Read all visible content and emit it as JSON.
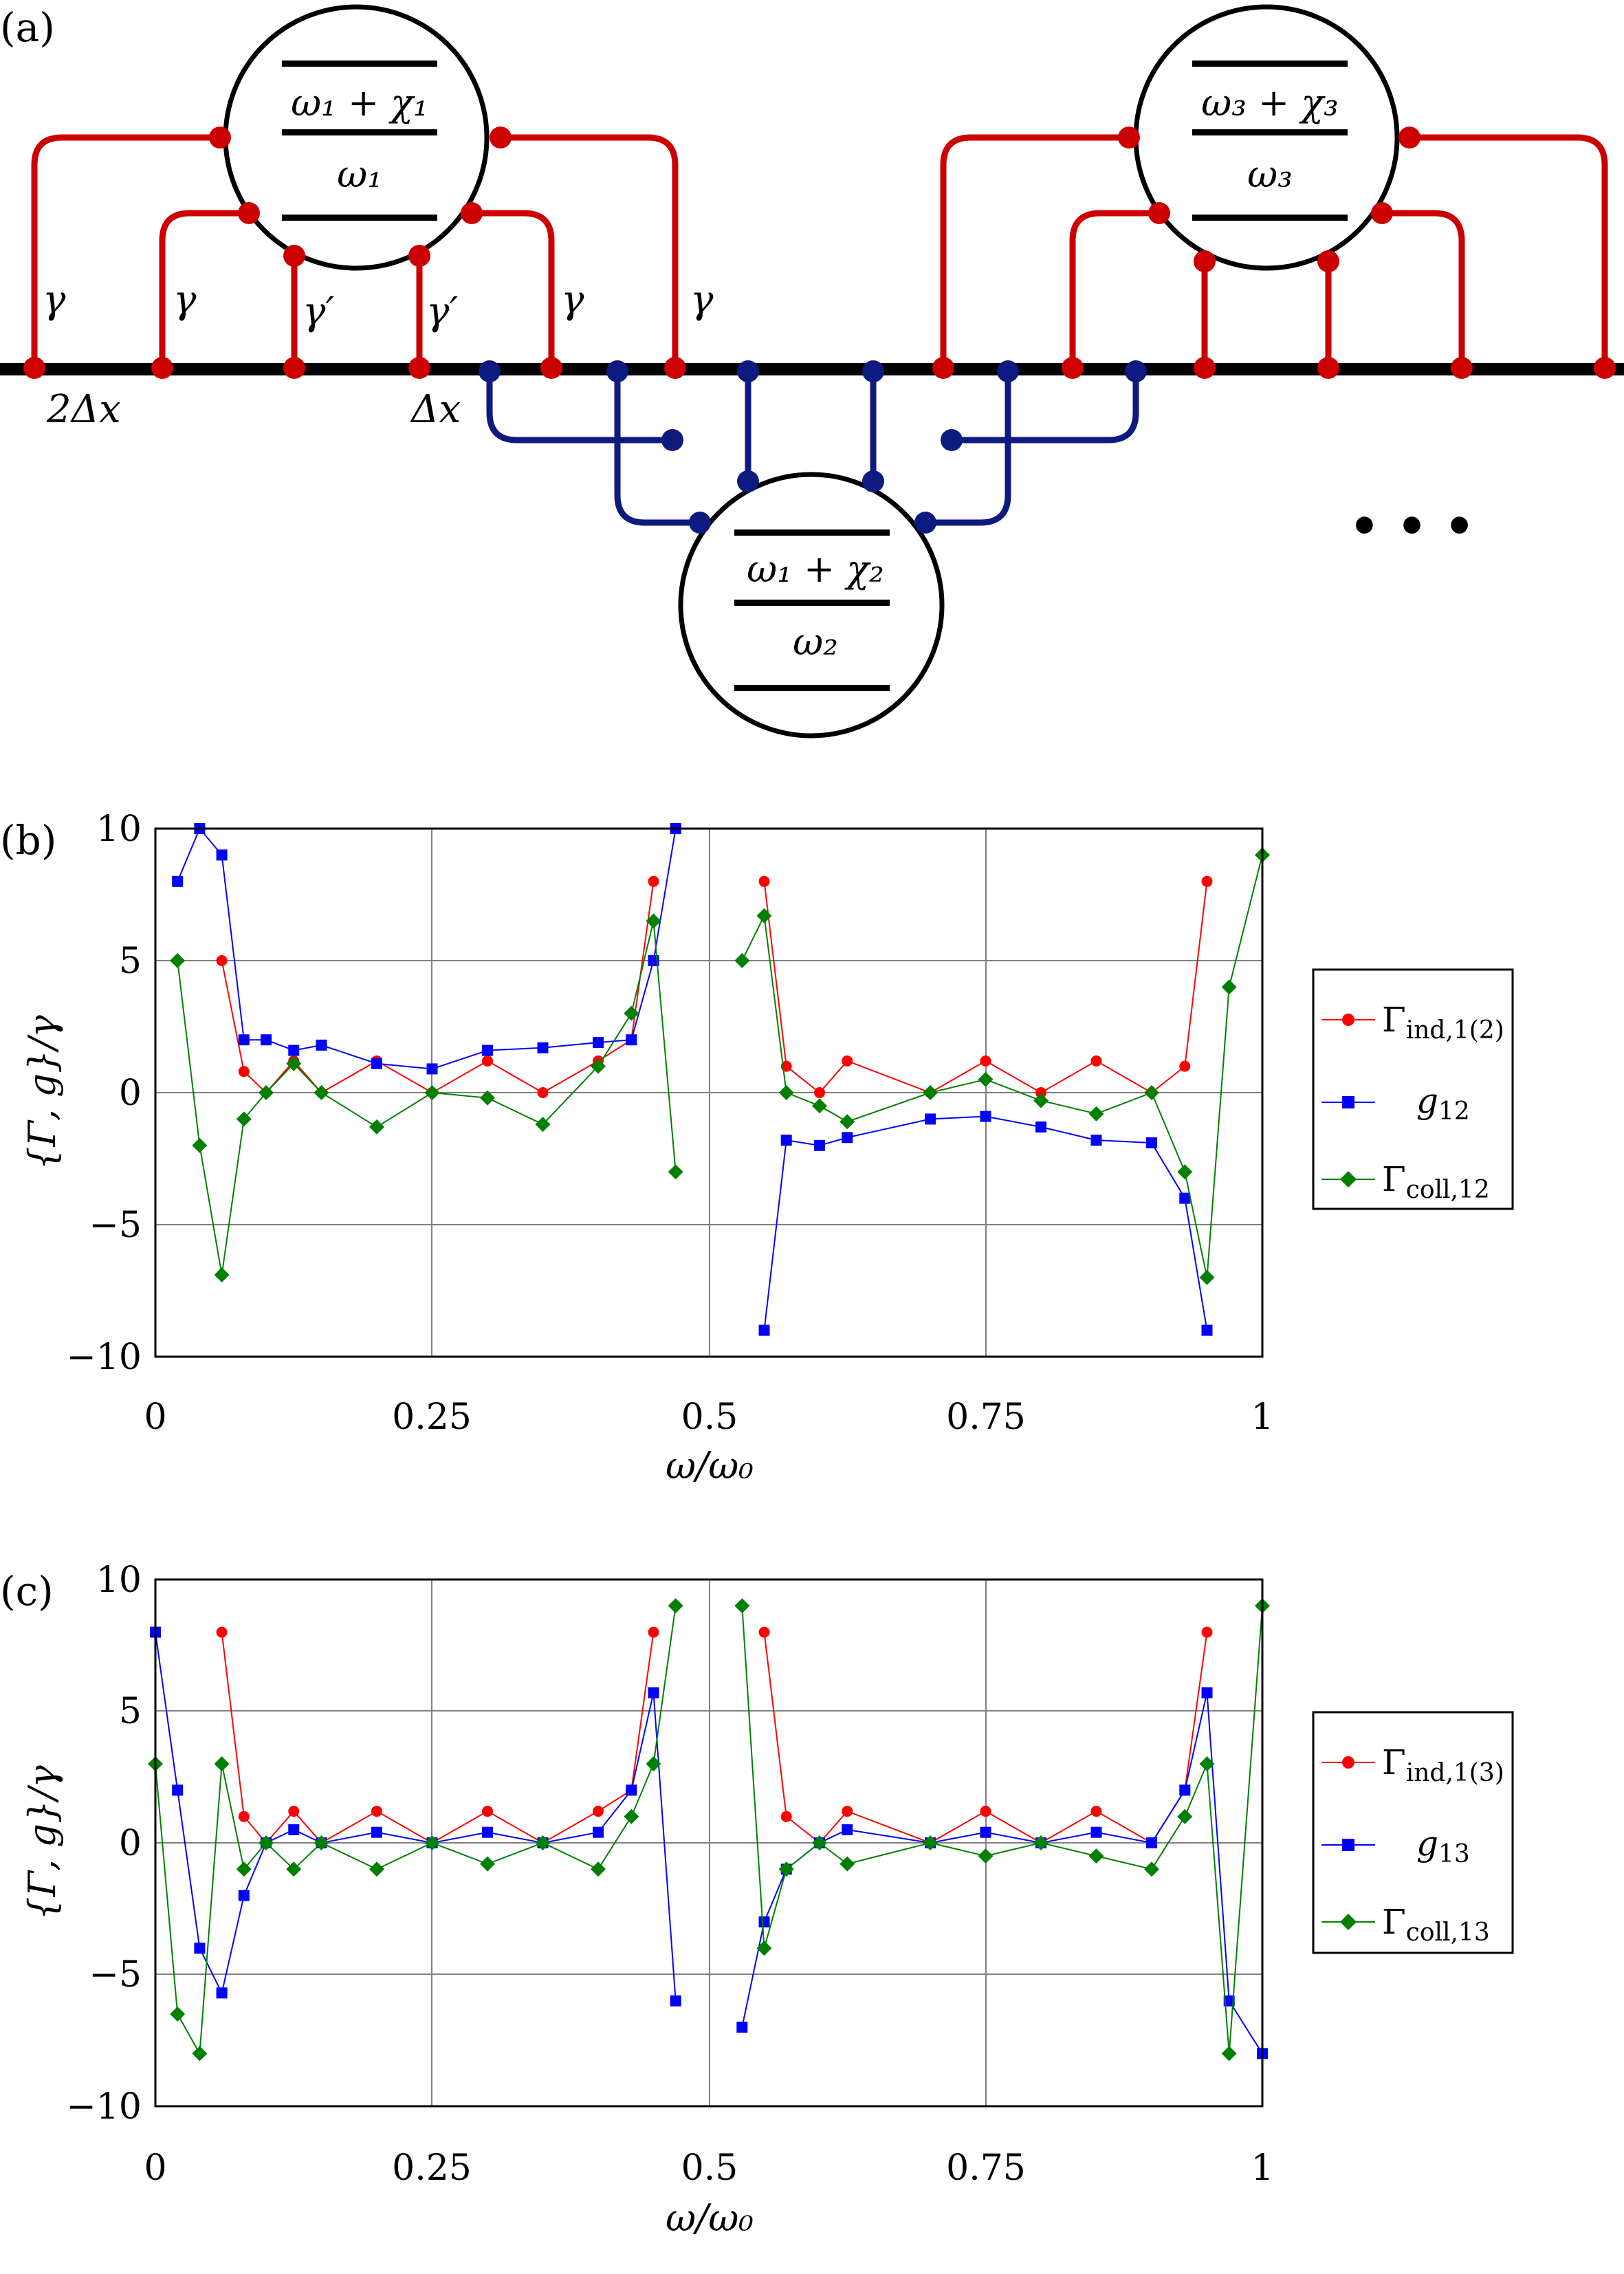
{
  "panel_a": {
    "label": "(a)",
    "atom1": {
      "upper": "ω₁ + χ₁",
      "lower": "ω₁"
    },
    "atom2": {
      "upper": "ω₁ + χ₂",
      "lower": "ω₂"
    },
    "atom3": {
      "upper": "ω₃ + χ₃",
      "lower": "ω₃"
    },
    "coupling_labels": [
      "γ",
      "γ",
      "γ′",
      "γ′",
      "γ",
      "γ"
    ],
    "spacing_2dx": "2Δx",
    "spacing_dx": "Δx",
    "ellipsis": "• • •",
    "colors": {
      "atom_leg_red": "#cc0000",
      "atom_leg_blue": "#0d1a80",
      "waveguide": "#000000"
    }
  },
  "chart_data": [
    {
      "type": "line",
      "panel_label": "(b)",
      "xlabel": "ω/ω₀",
      "ylabel": "{Γ, g}/γ",
      "xlim": [
        0,
        1
      ],
      "ylim": [
        -10,
        10
      ],
      "xticks": [
        "0",
        "0.25",
        "0.5",
        "0.75",
        "1"
      ],
      "yticks": [
        "10",
        "5",
        "0",
        "−5",
        "−10"
      ],
      "grid": true,
      "legend": "right",
      "series": [
        {
          "name": "Γind,1(2)",
          "sub": "ind,1(2)",
          "base": "Γ",
          "color": "#ff0000",
          "marker": "circle"
        },
        {
          "name": "g12",
          "sub": "12",
          "base": "g",
          "color": "#0000ff",
          "marker": "square"
        },
        {
          "name": "Γcoll,12",
          "sub": "coll,12",
          "base": "Γ",
          "color": "#008000",
          "marker": "diamond"
        }
      ],
      "samples": {
        "x": [
          0.0,
          0.02,
          0.04,
          0.06,
          0.08,
          0.1,
          0.125,
          0.15,
          0.2,
          0.25,
          0.3,
          0.35,
          0.4,
          0.43,
          0.45,
          0.47,
          0.5,
          0.53,
          0.55,
          0.57,
          0.6,
          0.625,
          0.7,
          0.75,
          0.8,
          0.85,
          0.9,
          0.93,
          0.95,
          0.97,
          1.0
        ],
        "gamma_ind": [
          null,
          null,
          null,
          5.0,
          0.8,
          0.0,
          1.2,
          0.0,
          1.2,
          0.0,
          1.2,
          0.0,
          1.2,
          2.0,
          8.0,
          null,
          null,
          null,
          8.0,
          1.0,
          0.0,
          1.2,
          0.0,
          1.2,
          0.0,
          1.2,
          0.0,
          1.0,
          8.0,
          null,
          null
        ],
        "g": [
          null,
          8.0,
          10.0,
          9.0,
          2.0,
          2.0,
          1.6,
          1.8,
          1.1,
          0.9,
          1.6,
          1.7,
          1.9,
          2.0,
          5.0,
          10.0,
          null,
          null,
          -9.0,
          -1.8,
          -2.0,
          -1.7,
          -1.0,
          -0.9,
          -1.3,
          -1.8,
          -1.9,
          -4.0,
          -9.0,
          null,
          null
        ],
        "gamma_coll": [
          null,
          5.0,
          -2.0,
          -6.9,
          -1.0,
          0.0,
          1.1,
          0.0,
          -1.3,
          0.0,
          -0.2,
          -1.2,
          1.0,
          3.0,
          6.5,
          -3.0,
          null,
          5.0,
          6.7,
          0.0,
          -0.5,
          -1.1,
          0.0,
          0.5,
          -0.3,
          -0.8,
          0.0,
          -3.0,
          -7.0,
          4.0,
          9.0
        ]
      }
    },
    {
      "type": "line",
      "panel_label": "(c)",
      "xlabel": "ω/ω₀",
      "ylabel": "{Γ, g}/γ",
      "xlim": [
        0,
        1
      ],
      "ylim": [
        -10,
        10
      ],
      "xticks": [
        "0",
        "0.25",
        "0.5",
        "0.75",
        "1"
      ],
      "yticks": [
        "10",
        "5",
        "0",
        "−5",
        "−10"
      ],
      "grid": true,
      "legend": "right",
      "series": [
        {
          "name": "Γind,1(3)",
          "sub": "ind,1(3)",
          "base": "Γ",
          "color": "#ff0000",
          "marker": "circle"
        },
        {
          "name": "g13",
          "sub": "13",
          "base": "g",
          "color": "#0000ff",
          "marker": "square"
        },
        {
          "name": "Γcoll,13",
          "sub": "coll,13",
          "base": "Γ",
          "color": "#008000",
          "marker": "diamond"
        }
      ],
      "samples": {
        "x": [
          0.0,
          0.02,
          0.04,
          0.06,
          0.08,
          0.1,
          0.125,
          0.15,
          0.2,
          0.25,
          0.3,
          0.35,
          0.4,
          0.43,
          0.45,
          0.47,
          0.5,
          0.53,
          0.55,
          0.57,
          0.6,
          0.625,
          0.7,
          0.75,
          0.8,
          0.85,
          0.9,
          0.93,
          0.95,
          0.97,
          1.0
        ],
        "gamma_ind": [
          null,
          null,
          null,
          8.0,
          1.0,
          0.0,
          1.2,
          0.0,
          1.2,
          0.0,
          1.2,
          0.0,
          1.2,
          2.0,
          8.0,
          null,
          null,
          null,
          8.0,
          1.0,
          0.0,
          1.2,
          0.0,
          1.2,
          0.0,
          1.2,
          0.0,
          2.0,
          8.0,
          null,
          null
        ],
        "g": [
          8.0,
          2.0,
          -4.0,
          -5.7,
          -2.0,
          0.0,
          0.5,
          0.0,
          0.4,
          0.0,
          0.4,
          0.0,
          0.4,
          2.0,
          5.7,
          -6.0,
          null,
          -7.0,
          -3.0,
          -1.0,
          0.0,
          0.5,
          0.0,
          0.4,
          0.0,
          0.4,
          0.0,
          2.0,
          5.7,
          -6.0,
          -8.0
        ],
        "gamma_coll": [
          3.0,
          -6.5,
          -8.0,
          3.0,
          -1.0,
          0.0,
          -1.0,
          0.0,
          -1.0,
          0.0,
          -0.8,
          0.0,
          -1.0,
          1.0,
          3.0,
          9.0,
          null,
          9.0,
          -4.0,
          -1.0,
          0.0,
          -0.8,
          0.0,
          -0.5,
          0.0,
          -0.5,
          -1.0,
          1.0,
          3.0,
          -8.0,
          9.0
        ]
      }
    }
  ]
}
